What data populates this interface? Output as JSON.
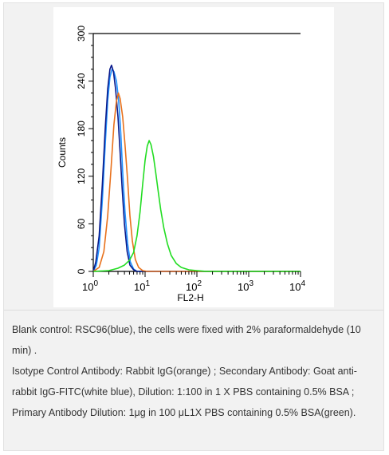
{
  "chart_data": {
    "type": "line",
    "xlabel": "FL2-H",
    "ylabel": "Counts",
    "x_scale": "log",
    "xlim": [
      1,
      10000
    ],
    "ylim": [
      0,
      300
    ],
    "x_ticks": [
      {
        "value": 1,
        "base": "10",
        "exp": "0"
      },
      {
        "value": 10,
        "base": "10",
        "exp": "1"
      },
      {
        "value": 100,
        "base": "10",
        "exp": "2"
      },
      {
        "value": 1000,
        "base": "10",
        "exp": "3"
      },
      {
        "value": 10000,
        "base": "10",
        "exp": "4"
      }
    ],
    "y_ticks": [
      "0",
      "60",
      "120",
      "180",
      "240",
      "300"
    ],
    "series": [
      {
        "color": "#1e90ff",
        "points": [
          [
            1,
            0
          ],
          [
            1.15,
            8
          ],
          [
            1.3,
            30
          ],
          [
            1.5,
            90
          ],
          [
            1.7,
            160
          ],
          [
            1.9,
            215
          ],
          [
            2.1,
            245
          ],
          [
            2.3,
            255
          ],
          [
            2.5,
            252
          ],
          [
            2.8,
            240
          ],
          [
            3.1,
            215
          ],
          [
            3.4,
            175
          ],
          [
            3.7,
            125
          ],
          [
            4.1,
            75
          ],
          [
            4.6,
            35
          ],
          [
            5.2,
            12
          ],
          [
            6,
            3
          ],
          [
            7,
            0
          ],
          [
            10000,
            0
          ]
        ]
      },
      {
        "color": "#0a1a8c",
        "points": [
          [
            1,
            0
          ],
          [
            1.12,
            12
          ],
          [
            1.3,
            45
          ],
          [
            1.5,
            110
          ],
          [
            1.7,
            180
          ],
          [
            1.9,
            230
          ],
          [
            2.1,
            255
          ],
          [
            2.25,
            260
          ],
          [
            2.45,
            252
          ],
          [
            2.7,
            230
          ],
          [
            3.0,
            195
          ],
          [
            3.3,
            150
          ],
          [
            3.6,
            105
          ],
          [
            4.0,
            60
          ],
          [
            4.5,
            25
          ],
          [
            5.1,
            8
          ],
          [
            6,
            2
          ],
          [
            7,
            0
          ],
          [
            10000,
            0
          ]
        ]
      },
      {
        "color": "#e8711c",
        "points": [
          [
            1,
            0
          ],
          [
            1.3,
            5
          ],
          [
            1.6,
            25
          ],
          [
            1.9,
            70
          ],
          [
            2.2,
            130
          ],
          [
            2.5,
            185
          ],
          [
            2.8,
            215
          ],
          [
            3.05,
            225
          ],
          [
            3.3,
            218
          ],
          [
            3.7,
            195
          ],
          [
            4.1,
            160
          ],
          [
            4.6,
            115
          ],
          [
            5.1,
            70
          ],
          [
            5.7,
            38
          ],
          [
            6.5,
            15
          ],
          [
            7.5,
            5
          ],
          [
            9,
            1
          ],
          [
            11,
            0
          ],
          [
            10000,
            0
          ]
        ]
      },
      {
        "color": "#22dd22",
        "points": [
          [
            1,
            0
          ],
          [
            2,
            1
          ],
          [
            3,
            4
          ],
          [
            4,
            8
          ],
          [
            5,
            14
          ],
          [
            6,
            24
          ],
          [
            7,
            45
          ],
          [
            8,
            75
          ],
          [
            9,
            110
          ],
          [
            10,
            140
          ],
          [
            11,
            158
          ],
          [
            12,
            165
          ],
          [
            13,
            160
          ],
          [
            14.5,
            145
          ],
          [
            16,
            125
          ],
          [
            18,
            100
          ],
          [
            20,
            78
          ],
          [
            23,
            55
          ],
          [
            27,
            35
          ],
          [
            32,
            20
          ],
          [
            40,
            10
          ],
          [
            50,
            5
          ],
          [
            70,
            2
          ],
          [
            100,
            1
          ],
          [
            150,
            0
          ],
          [
            10000,
            0
          ]
        ]
      }
    ]
  },
  "caption": {
    "line1": "Blank control: RSC96(blue), the cells were fixed with 2% paraformaldehyde (10 min) .",
    "line2": "Isotype Control Antibody: Rabbit IgG(orange) ; Secondary Antibody: Goat anti-rabbit IgG-FITC(white blue), Dilution: 1:100 in 1 X PBS containing 0.5% BSA ; Primary Antibody Dilution: 1μg in 100 μL1X PBS containing 0.5% BSA(green)."
  }
}
